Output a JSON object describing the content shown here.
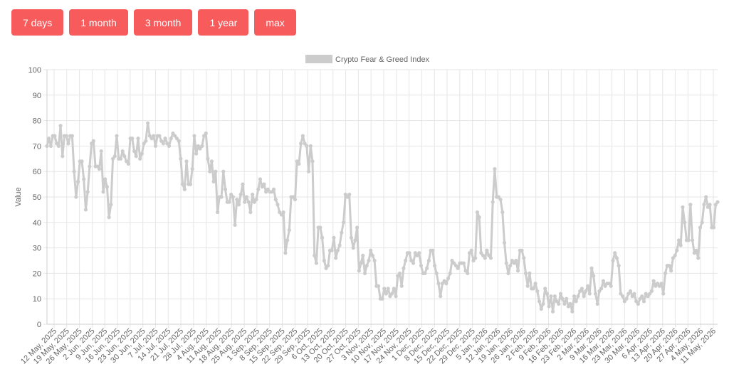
{
  "buttons": [
    {
      "label": "7 days"
    },
    {
      "label": "1 month"
    },
    {
      "label": "3 month"
    },
    {
      "label": "1 year"
    },
    {
      "label": "max"
    }
  ],
  "colors": {
    "button": "#f75b5b",
    "line": "#cccccc",
    "grid": "#e6e6e6"
  },
  "chart_data": {
    "type": "line",
    "legend": {
      "label": "Crypto Fear & Greed Index",
      "position": "top"
    },
    "ylabel": "Value",
    "ylim": [
      0,
      100
    ],
    "yticks": [
      0,
      10,
      20,
      30,
      40,
      50,
      60,
      70,
      80,
      90,
      100
    ],
    "grid": true,
    "x_labels": [
      "12 May, 2025",
      "19 May, 2025",
      "26 May, 2025",
      "2 Jun, 2025",
      "9 Jun, 2025",
      "16 Jun, 2025",
      "23 Jun, 2025",
      "30 Jun, 2025",
      "7 Jul, 2025",
      "14 Jul, 2025",
      "21 Jul, 2025",
      "28 Jul, 2025",
      "4 Aug, 2025",
      "11 Aug, 2025",
      "18 Aug, 2025",
      "25 Aug, 2025",
      "1 Sep, 2025",
      "8 Sep, 2025",
      "15 Sep, 2025",
      "22 Sep, 2025",
      "29 Sep, 2025",
      "6 Oct, 2025",
      "13 Oct, 2025",
      "20 Oct, 2025",
      "27 Oct, 2025",
      "3 Nov, 2025",
      "10 Nov, 2025",
      "17 Nov, 2025",
      "24 Nov, 2025",
      "1 Dec, 2025",
      "8 Dec, 2025",
      "15 Dec, 2025",
      "22 Dec, 2025",
      "29 Dec, 2025",
      "5 Jan, 2026",
      "12 Jan, 2026",
      "19 Jan, 2026",
      "26 Jan, 2026",
      "2 Feb, 2026",
      "9 Feb, 2026",
      "16 Feb, 2026",
      "23 Feb, 2026",
      "2 Mar, 2026",
      "9 Mar, 2026",
      "16 Mar, 2026",
      "23 Mar, 2026",
      "30 Mar, 2026",
      "6 Apr, 2026",
      "13 Apr, 2026",
      "20 Apr, 2026",
      "27 Apr, 2026",
      "4 May, 2026",
      "11 May, 2026"
    ],
    "series": [
      {
        "values": [
          70,
          73,
          70,
          74,
          74,
          71,
          70,
          78,
          66,
          74,
          74,
          71,
          74,
          74,
          60,
          50,
          56,
          64,
          64,
          57,
          45,
          52,
          62,
          71,
          72,
          62,
          62,
          61,
          68,
          52,
          57,
          54,
          42,
          47,
          65,
          66,
          74,
          65,
          65,
          68,
          66,
          64,
          63,
          73,
          73,
          68,
          66,
          73,
          65,
          67,
          71,
          72,
          79,
          74,
          73,
          74,
          70,
          74,
          74,
          72,
          71,
          73,
          71,
          70,
          73,
          75,
          74,
          73,
          72,
          65,
          55,
          53,
          64,
          55,
          55,
          61,
          74,
          67,
          70,
          69,
          70,
          74,
          75,
          65,
          60,
          64,
          56,
          60,
          44,
          50,
          50,
          60,
          53,
          48,
          48,
          51,
          50,
          39,
          49,
          47,
          51,
          55,
          48,
          50,
          48,
          44,
          51,
          48,
          49,
          53,
          57,
          54,
          55,
          52,
          53,
          52,
          52,
          53,
          49,
          47,
          44,
          43,
          44,
          28,
          33,
          37,
          50,
          50,
          49,
          64,
          63,
          71,
          74,
          71,
          70,
          60,
          70,
          64,
          27,
          24,
          38,
          38,
          34,
          25,
          22,
          23,
          29,
          29,
          34,
          26,
          29,
          31,
          36,
          40,
          51,
          50,
          51,
          34,
          30,
          33,
          38,
          21,
          24,
          27,
          20,
          23,
          25,
          29,
          27,
          25,
          15,
          15,
          10,
          10,
          14,
          12,
          14,
          11,
          12,
          14,
          11,
          19,
          20,
          15,
          22,
          25,
          28,
          28,
          25,
          24,
          28,
          27,
          28,
          23,
          20,
          20,
          22,
          25,
          29,
          29,
          23,
          20,
          16,
          11,
          16,
          17,
          16,
          18,
          20,
          25,
          24,
          23,
          22,
          24,
          24,
          24,
          21,
          20,
          28,
          29,
          25,
          26,
          44,
          42,
          28,
          27,
          26,
          29,
          27,
          26,
          48,
          61,
          50,
          50,
          49,
          44,
          32,
          24,
          20,
          23,
          25,
          24,
          25,
          21,
          29,
          29,
          26,
          20,
          15,
          20,
          14,
          14,
          16,
          13,
          9,
          6,
          8,
          14,
          12,
          7,
          11,
          5,
          11,
          9,
          8,
          12,
          10,
          8,
          10,
          7,
          8,
          5,
          11,
          9,
          11,
          13,
          14,
          11,
          13,
          15,
          12,
          22,
          19,
          12,
          8,
          13,
          14,
          17,
          15,
          16,
          16,
          15,
          25,
          28,
          26,
          23,
          12,
          11,
          9,
          10,
          12,
          13,
          11,
          12,
          9,
          8,
          10,
          11,
          9,
          12,
          11,
          12,
          13,
          17,
          15,
          16,
          15,
          16,
          12,
          20,
          23,
          23,
          21,
          26,
          27,
          29,
          33,
          31,
          46,
          40,
          33,
          33,
          47,
          33,
          28,
          29,
          26,
          38,
          40,
          47,
          50,
          46,
          47,
          38,
          38,
          47,
          48
        ]
      }
    ]
  }
}
